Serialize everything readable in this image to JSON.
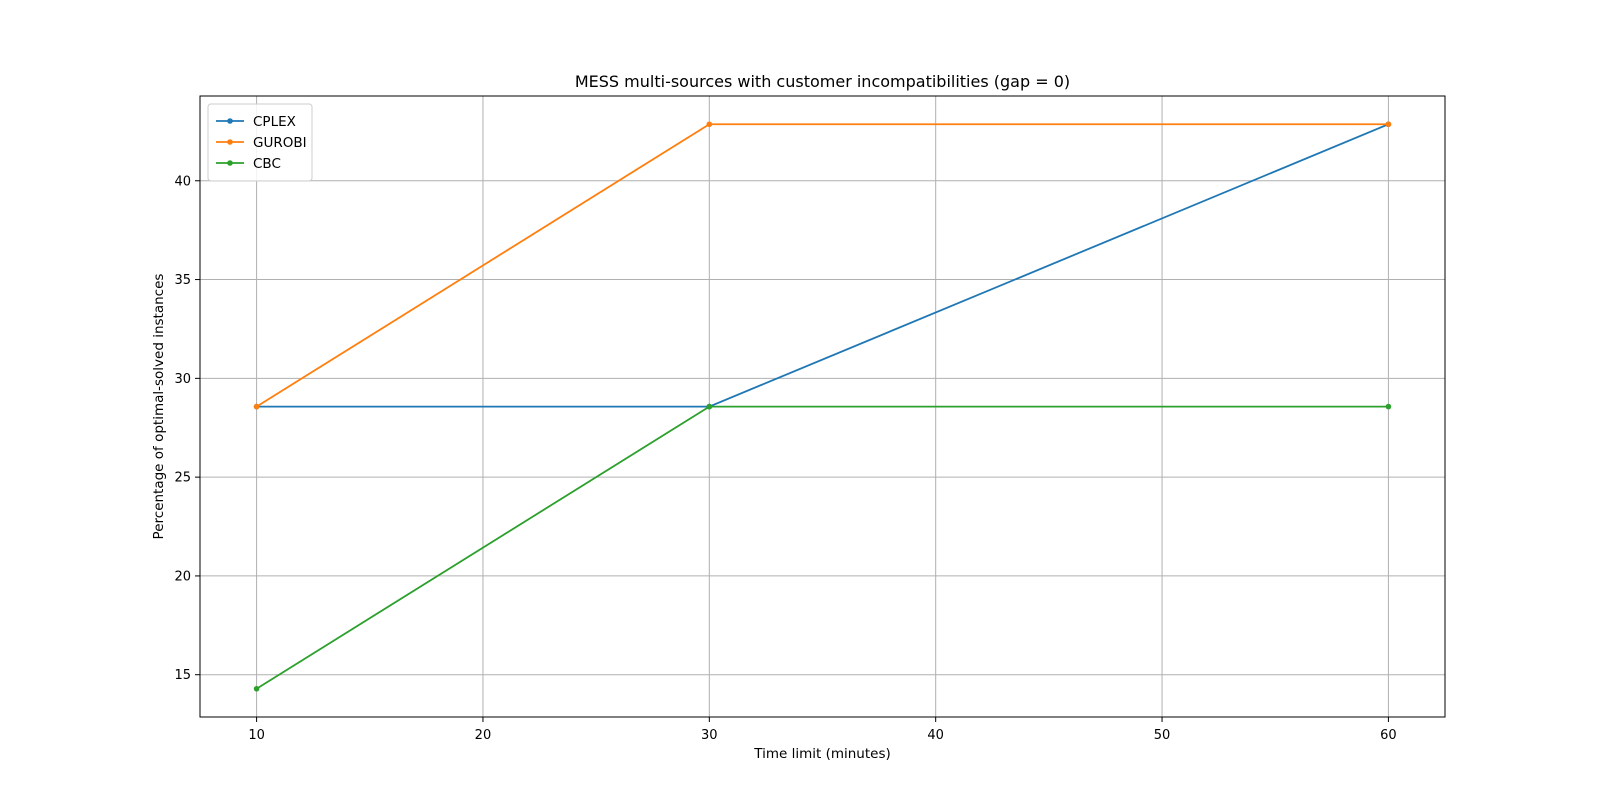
{
  "chart_data": {
    "type": "line",
    "title": "MESS multi-sources with customer incompatibilities (gap = 0)",
    "xlabel": "Time limit (minutes)",
    "ylabel": "Percentage of optimal-solved instances",
    "x": [
      10,
      30,
      60
    ],
    "series": [
      {
        "name": "CPLEX",
        "color": "#1f77b4",
        "values": [
          28.57,
          28.57,
          42.86
        ]
      },
      {
        "name": "GUROBI",
        "color": "#ff7f0e",
        "values": [
          28.57,
          42.86,
          42.86
        ]
      },
      {
        "name": "CBC",
        "color": "#2ca02c",
        "values": [
          14.29,
          28.57,
          28.57
        ]
      }
    ],
    "xlim": [
      7.5,
      62.5
    ],
    "ylim": [
      12.86,
      44.29
    ],
    "xticks": [
      10,
      20,
      30,
      40,
      50,
      60
    ],
    "yticks": [
      15,
      20,
      25,
      30,
      35,
      40
    ],
    "grid": true,
    "legend_position": "upper-left"
  }
}
